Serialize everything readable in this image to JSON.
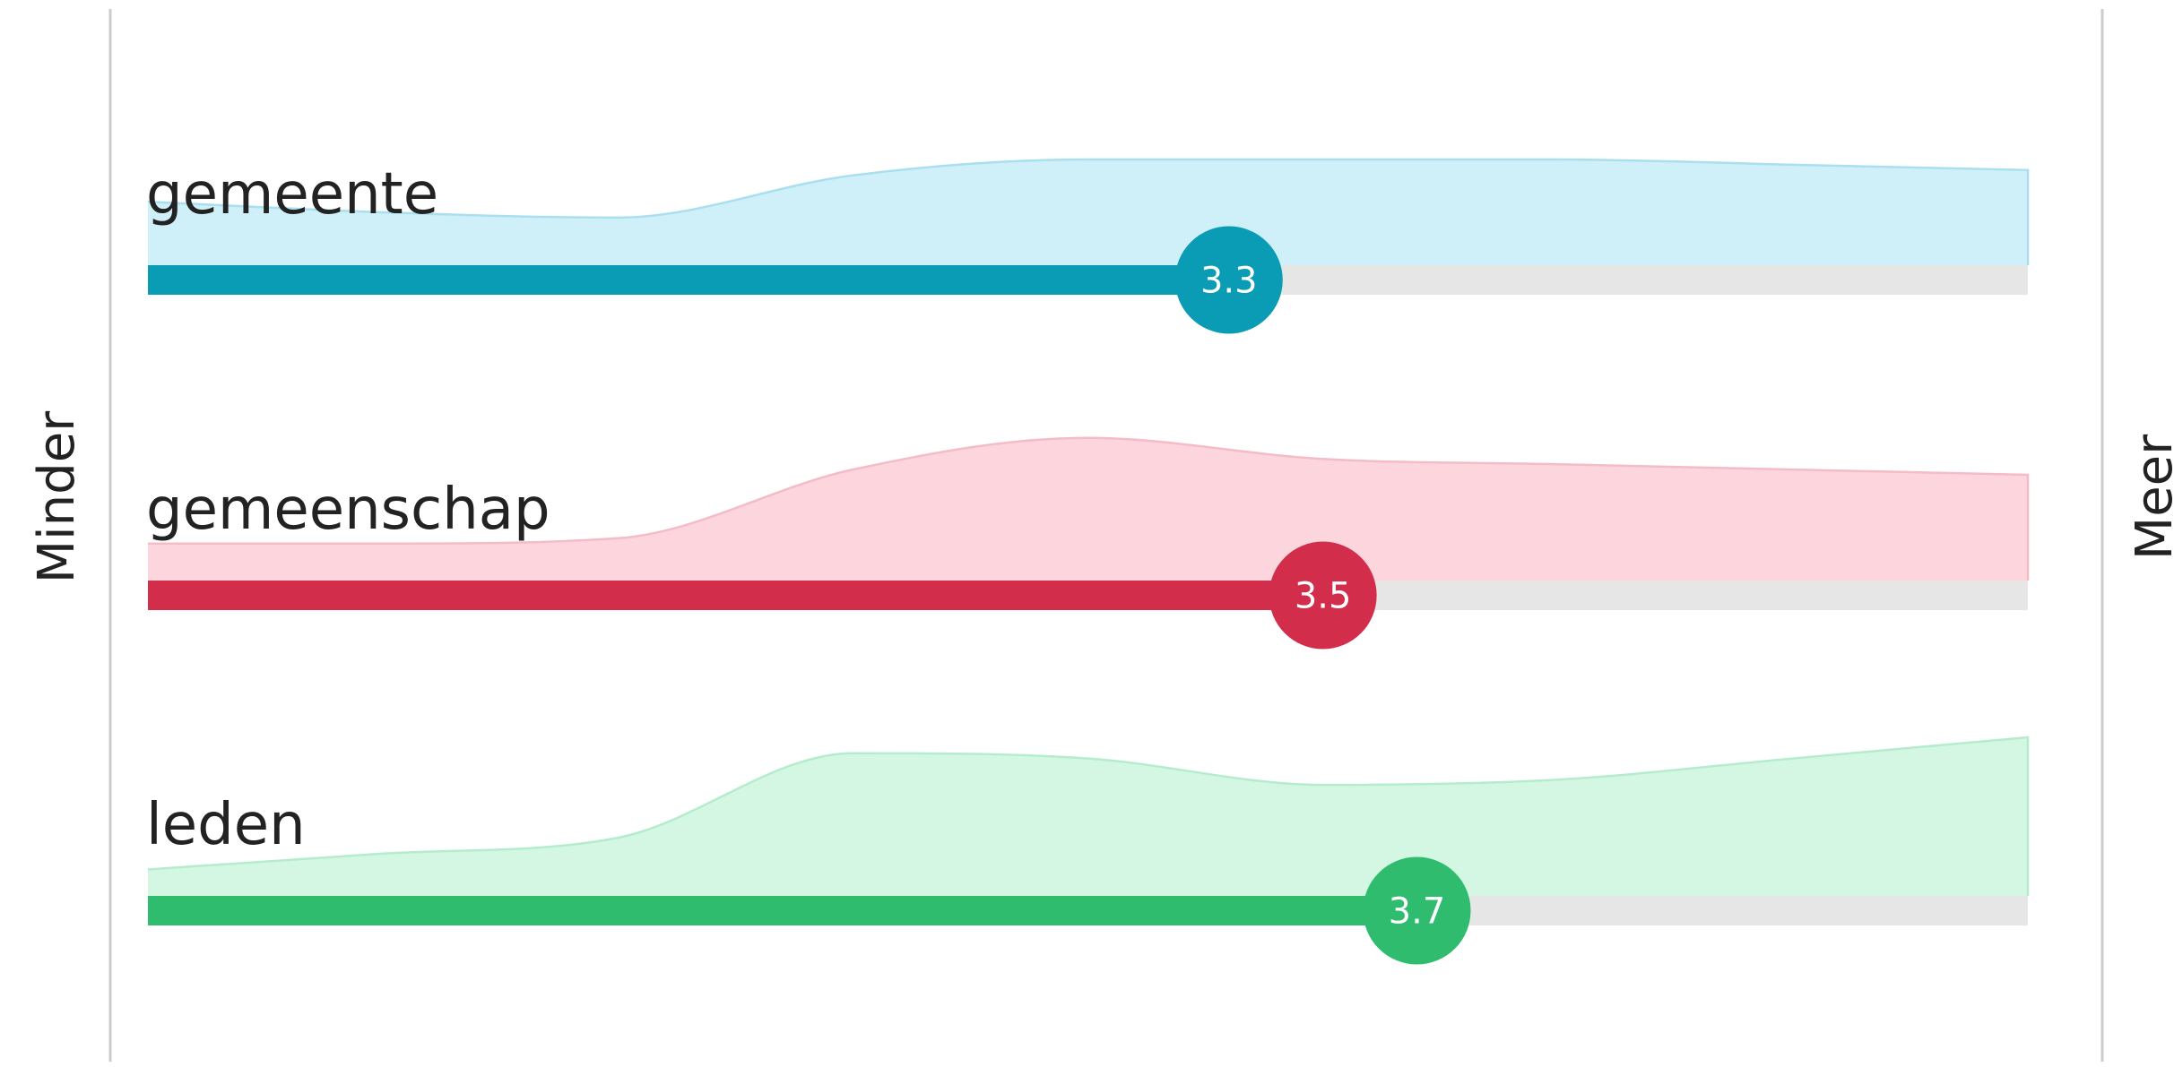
{
  "chart_data": {
    "type": "area",
    "xlim": [
      1,
      5
    ],
    "left_label": "Minder",
    "right_label": "Meer",
    "colors": {
      "track": "#e6e6e6",
      "axis_line": "#cccccc"
    },
    "series": [
      {
        "name": "gemeente",
        "mean": 3.3,
        "mean_label": "3.3",
        "color": "#0a9bb5",
        "fill": "#cff0f9",
        "stroke": "#a9dfee",
        "distribution": {
          "x": [
            1.0,
            1.5,
            2.0,
            2.5,
            3.0,
            3.5,
            4.0,
            4.5,
            5.0
          ],
          "y": [
            0.12,
            0.1,
            0.09,
            0.17,
            0.2,
            0.2,
            0.2,
            0.19,
            0.18
          ]
        }
      },
      {
        "name": "gemeenschap",
        "mean": 3.5,
        "mean_label": "3.5",
        "color": "#d22d4b",
        "fill": "#fcd6dc",
        "stroke": "#f4bcc6",
        "distribution": {
          "x": [
            1.0,
            1.5,
            2.0,
            2.5,
            3.0,
            3.5,
            4.0,
            4.5,
            5.0
          ],
          "y": [
            0.07,
            0.07,
            0.08,
            0.21,
            0.27,
            0.23,
            0.22,
            0.21,
            0.2
          ]
        }
      },
      {
        "name": "leden",
        "mean": 3.7,
        "mean_label": "3.7",
        "color": "#2fbc6e",
        "fill": "#d3f7e2",
        "stroke": "#b6ecce",
        "distribution": {
          "x": [
            1.0,
            1.5,
            2.0,
            2.5,
            3.0,
            3.5,
            4.0,
            4.5,
            5.0
          ],
          "y": [
            0.05,
            0.08,
            0.11,
            0.27,
            0.26,
            0.21,
            0.22,
            0.26,
            0.3
          ]
        }
      }
    ]
  }
}
